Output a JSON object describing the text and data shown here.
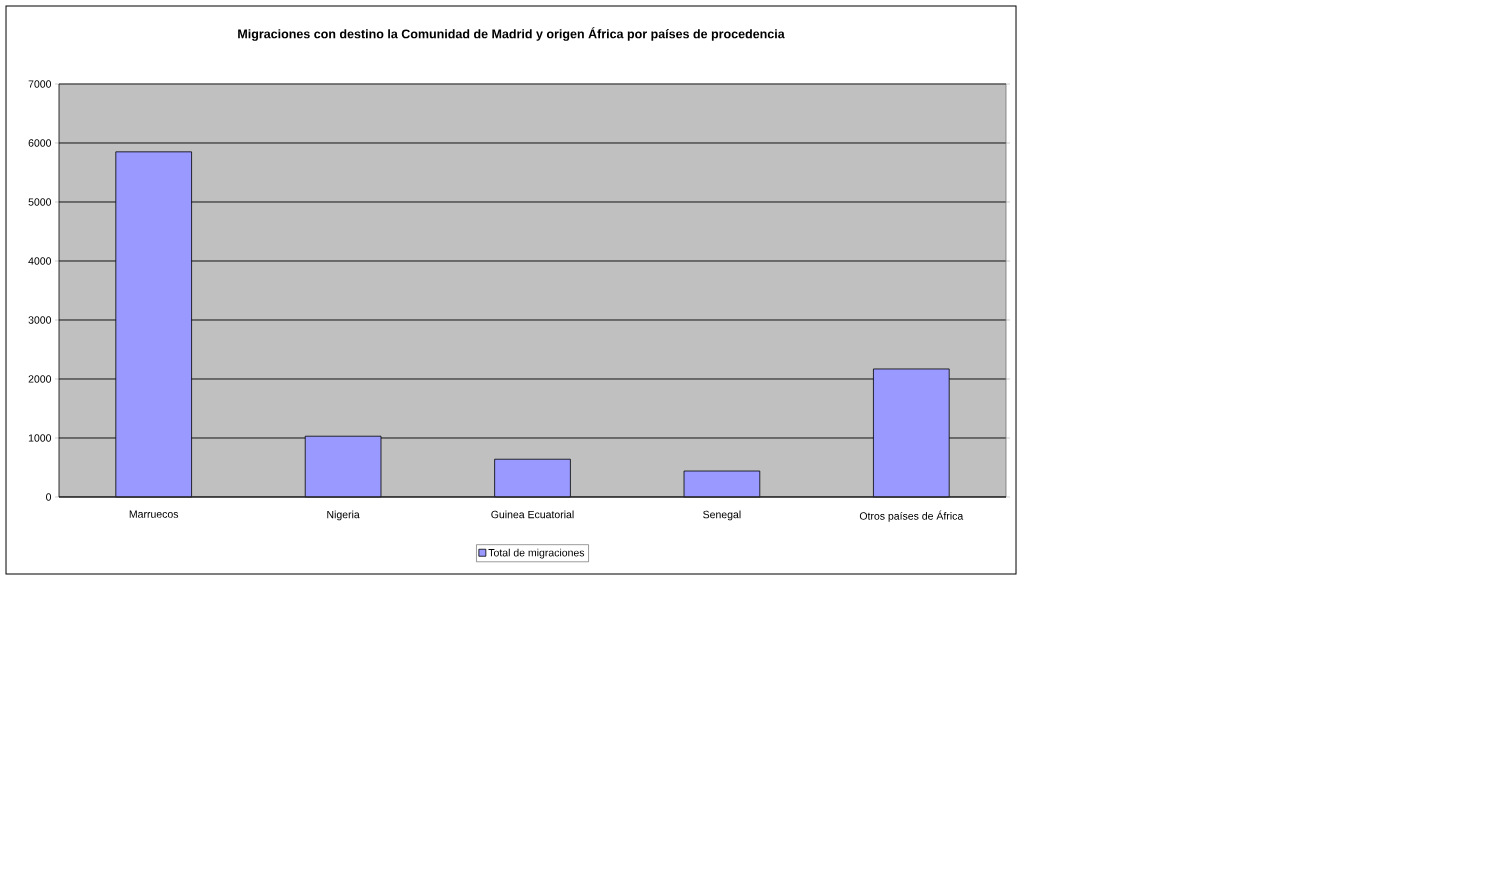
{
  "chart_data": {
    "type": "bar",
    "title": "Migraciones con destino la Comunidad de Madrid y origen  África por países de procedencia",
    "categories": [
      "Marruecos",
      "Nigeria",
      "Guinea Ecuatorial",
      "Senegal",
      "Otros países de África"
    ],
    "series": [
      {
        "name": "Total de migraciones",
        "color": "#9999ff",
        "values": [
          5850,
          1030,
          640,
          440,
          2170
        ]
      }
    ],
    "ylim": [
      0,
      7000
    ],
    "yticks": [
      0,
      1000,
      2000,
      3000,
      4000,
      5000,
      6000,
      7000
    ],
    "grid": "y",
    "legend": "bottom"
  }
}
